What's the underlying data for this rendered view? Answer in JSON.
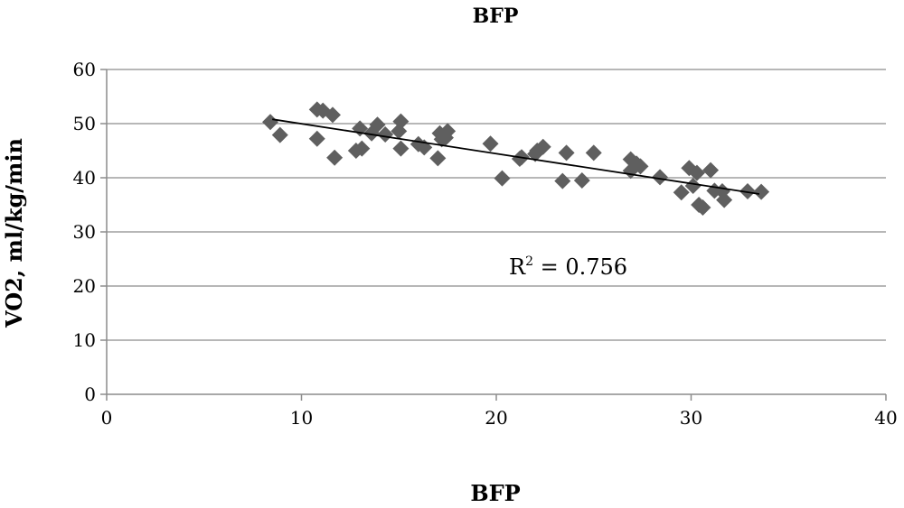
{
  "chart_data": {
    "type": "scatter",
    "title": "BFP",
    "xlabel": "BFP",
    "ylabel": "VO2,  ml/kg/min",
    "xlim": [
      0,
      40
    ],
    "ylim": [
      0,
      60
    ],
    "xticks": [
      0,
      10,
      20,
      30,
      40
    ],
    "yticks": [
      0,
      10,
      20,
      30,
      40,
      50,
      60
    ],
    "grid": "horizontal",
    "marker": "diamond",
    "marker_color": "#5f5f5f",
    "trendline": {
      "type": "linear",
      "x": [
        8.5,
        33.5
      ],
      "y": [
        50.8,
        37.0
      ],
      "color": "#000000"
    },
    "annotation": {
      "base": "R",
      "sup": "2",
      "rest": " = 0.756"
    },
    "points": [
      [
        8.4,
        50.3
      ],
      [
        8.9,
        47.9
      ],
      [
        10.8,
        52.6
      ],
      [
        11.1,
        52.4
      ],
      [
        11.6,
        51.6
      ],
      [
        10.8,
        47.2
      ],
      [
        11.7,
        43.7
      ],
      [
        12.8,
        45.0
      ],
      [
        13.1,
        45.4
      ],
      [
        13.0,
        49.1
      ],
      [
        13.6,
        48.2
      ],
      [
        13.9,
        49.8
      ],
      [
        14.3,
        48.0
      ],
      [
        15.1,
        50.4
      ],
      [
        15.0,
        48.6
      ],
      [
        15.1,
        45.4
      ],
      [
        16.0,
        46.2
      ],
      [
        16.3,
        45.6
      ],
      [
        17.0,
        43.6
      ],
      [
        17.1,
        48.2
      ],
      [
        17.2,
        47.1
      ],
      [
        17.5,
        48.6
      ],
      [
        17.4,
        47.4
      ],
      [
        19.7,
        46.3
      ],
      [
        20.3,
        39.9
      ],
      [
        21.2,
        43.5
      ],
      [
        21.3,
        43.8
      ],
      [
        22.0,
        44.4
      ],
      [
        22.1,
        45.0
      ],
      [
        22.4,
        45.7
      ],
      [
        23.4,
        39.4
      ],
      [
        23.6,
        44.6
      ],
      [
        24.4,
        39.5
      ],
      [
        25.0,
        44.6
      ],
      [
        26.9,
        43.4
      ],
      [
        26.9,
        41.3
      ],
      [
        27.2,
        42.6
      ],
      [
        27.4,
        42.1
      ],
      [
        28.4,
        40.1
      ],
      [
        29.5,
        37.3
      ],
      [
        29.9,
        41.8
      ],
      [
        30.1,
        38.5
      ],
      [
        30.3,
        40.9
      ],
      [
        30.4,
        35.0
      ],
      [
        30.6,
        34.5
      ],
      [
        31.0,
        41.4
      ],
      [
        31.2,
        37.6
      ],
      [
        31.6,
        37.5
      ],
      [
        31.7,
        35.9
      ],
      [
        32.9,
        37.5
      ],
      [
        33.6,
        37.4
      ]
    ]
  }
}
